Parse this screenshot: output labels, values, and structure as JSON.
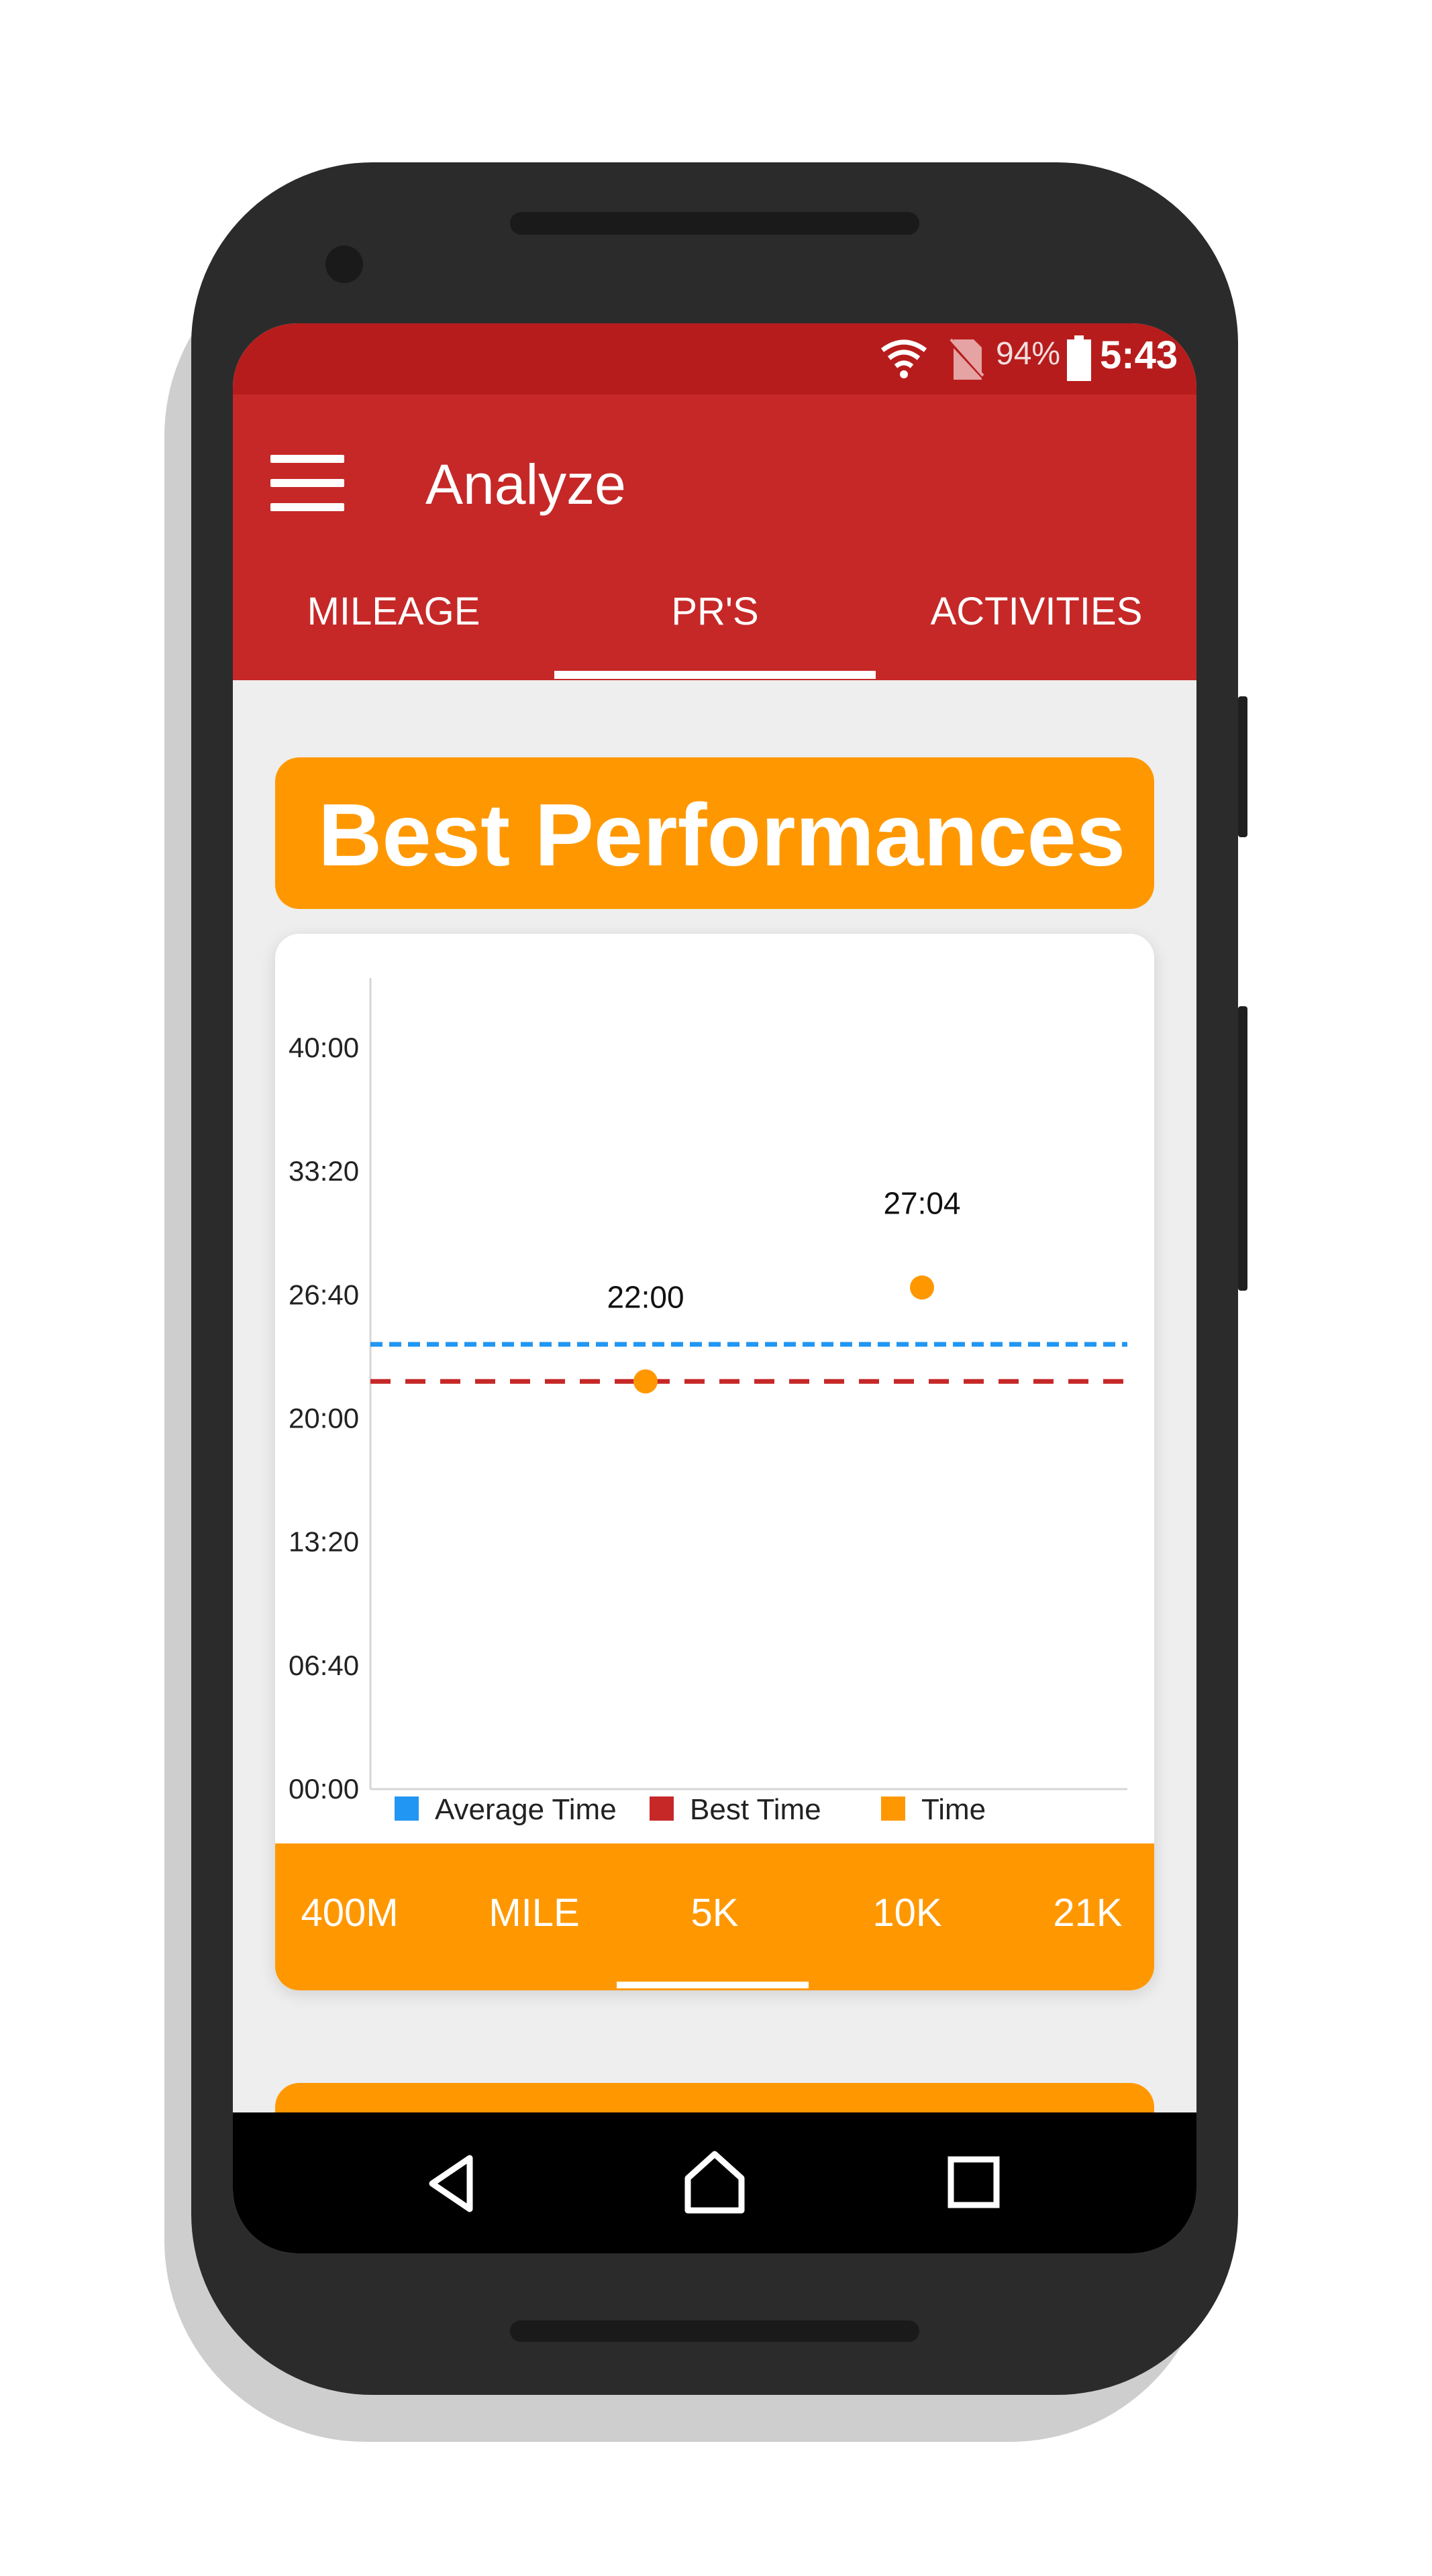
{
  "status_bar": {
    "battery_percent": "94%",
    "time": "5:43",
    "icons": [
      "wifi-icon",
      "no-sim-icon",
      "battery-icon"
    ]
  },
  "app_bar": {
    "title": "Analyze",
    "menu_icon": "hamburger-menu-icon",
    "tabs": [
      {
        "label": "MILEAGE"
      },
      {
        "label": "PR'S"
      },
      {
        "label": "ACTIVITIES"
      }
    ],
    "selected_tab": "PR'S"
  },
  "best_performances": {
    "title": "Best Performances"
  },
  "chart_data": {
    "type": "scatter",
    "y_ticks": [
      "40:00",
      "33:20",
      "26:40",
      "20:00",
      "13:20",
      "06:40",
      "00:00"
    ],
    "ylim_seconds": [
      0,
      2400
    ],
    "series": [
      {
        "name": "Average Time",
        "type": "line",
        "style": "dashed",
        "color": "#2196f3",
        "value_seconds": 1440
      },
      {
        "name": "Best Time",
        "type": "line",
        "style": "dashed",
        "color": "#c62828",
        "value_seconds": 1320
      },
      {
        "name": "Time",
        "type": "scatter",
        "color": "#ff9800",
        "points": [
          {
            "x_index": 1,
            "value_seconds": 1320,
            "label": "22:00"
          },
          {
            "x_index": 2,
            "value_seconds": 1624,
            "label": "27:04"
          }
        ]
      }
    ],
    "x_points_count": 3,
    "legend": [
      {
        "label": "Average Time",
        "color": "#2196f3"
      },
      {
        "label": "Best Time",
        "color": "#c62828"
      },
      {
        "label": "Time",
        "color": "#ff9800"
      }
    ],
    "legend_position": "bottom-left",
    "grid": false
  },
  "distance_tabs": {
    "items": [
      {
        "label": "400M"
      },
      {
        "label": "MILE"
      },
      {
        "label": "5K"
      },
      {
        "label": "10K"
      },
      {
        "label": "21K"
      }
    ],
    "selected": "5K"
  },
  "nav_bar": {
    "icons": [
      "back-icon",
      "home-icon",
      "recents-icon"
    ]
  },
  "colors": {
    "status_bar": "#b71c1c",
    "app_bar": "#c62828",
    "accent": "#ff9800"
  }
}
